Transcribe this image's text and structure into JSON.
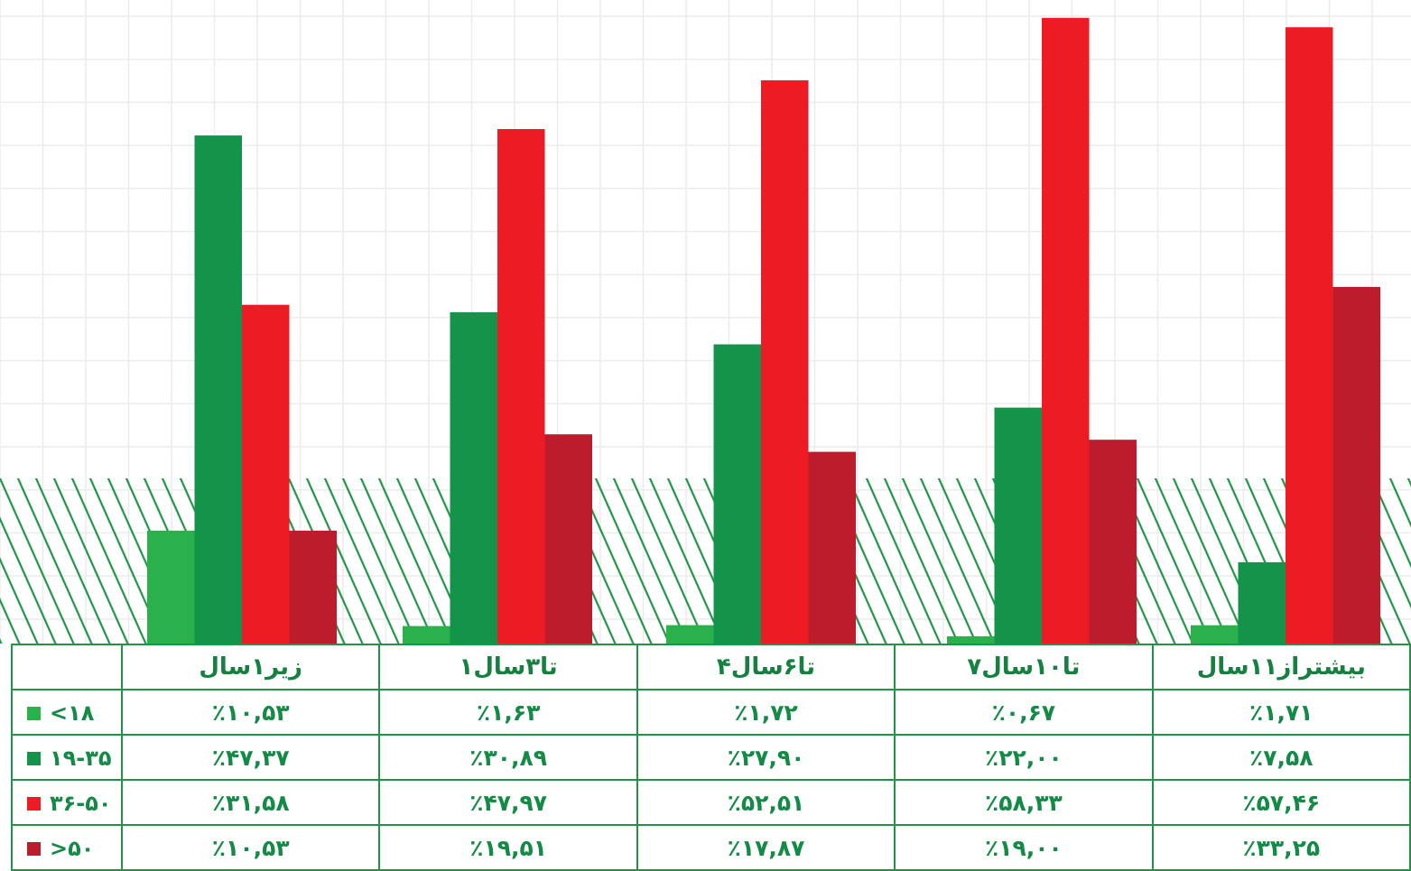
{
  "chart_data": {
    "type": "bar",
    "title": "",
    "xlabel": "",
    "ylabel": "",
    "ylim": [
      0,
      60
    ],
    "grid": true,
    "legend": "left (table row headers)",
    "categories": [
      "زیر۱سال",
      "۱تا۳سال",
      "۴تا۶سال",
      "۷تا۱۰سال",
      "بیشتراز۱۱سال"
    ],
    "series": [
      {
        "name": "<۱۸",
        "color": "#2bb14c",
        "values": [
          10.53,
          1.63,
          1.72,
          0.67,
          1.71
        ],
        "labels": [
          "٪۱۰,۵۳",
          "٪۱,۶۳",
          "٪۱,۷۲",
          "٪۰,۶۷",
          "٪۱,۷۱"
        ]
      },
      {
        "name": "۱۹-۳۵",
        "color": "#13944a",
        "values": [
          47.37,
          30.89,
          27.9,
          22.0,
          7.58
        ],
        "labels": [
          "٪۴۷,۳۷",
          "٪۳۰,۸۹",
          "٪۲۷,۹۰",
          "٪۲۲,۰۰",
          "٪۷,۵۸"
        ]
      },
      {
        "name": "۳۶-۵۰",
        "color": "#ed1c24",
        "values": [
          31.58,
          47.97,
          52.51,
          58.33,
          57.46
        ],
        "labels": [
          "٪۳۱,۵۸",
          "٪۴۷,۹۷",
          "٪۵۲,۵۱",
          "٪۵۸,۳۳",
          "٪۵۷,۴۶"
        ]
      },
      {
        "name": ">۵۰",
        "color": "#bd1c2d",
        "values": [
          10.53,
          19.51,
          17.87,
          19.0,
          33.25
        ],
        "labels": [
          "٪۱۰,۵۳",
          "٪۱۹,۵۱",
          "٪۱۷,۸۷",
          "٪۱۹,۰۰",
          "٪۳۳,۲۵"
        ]
      }
    ]
  },
  "colors": {
    "grid": "#ececec",
    "hatch": "#1f9447",
    "table_border": "#1f9447",
    "table_text": "#138a45"
  }
}
